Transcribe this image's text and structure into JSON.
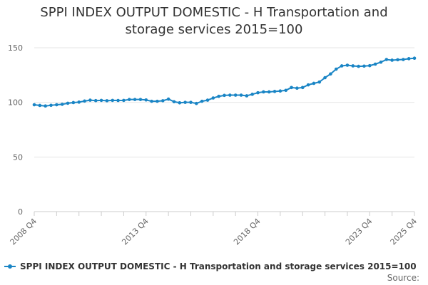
{
  "chart_data": {
    "type": "line",
    "title_lines": [
      "SPPI INDEX OUTPUT DOMESTIC - H Transportation and",
      "storage services 2015=100"
    ],
    "xlabel": "",
    "ylabel": "",
    "ylim": [
      0,
      150
    ],
    "y_ticks": [
      0,
      50,
      100,
      150
    ],
    "x_tick_labels": [
      "2008 Q4",
      "2013 Q4",
      "2018 Q4",
      "2023 Q4",
      "2025 Q4"
    ],
    "x_tick_positions": [
      0,
      20,
      40,
      60,
      68
    ],
    "grid": true,
    "legend_position": "bottom",
    "series": [
      {
        "name": "SPPI INDEX OUTPUT DOMESTIC - H Transportation and storage services 2015=100",
        "color": "#1a85c5",
        "x": [
          "2008 Q4",
          "2009 Q1",
          "2009 Q2",
          "2009 Q3",
          "2009 Q4",
          "2010 Q1",
          "2010 Q2",
          "2010 Q3",
          "2010 Q4",
          "2011 Q1",
          "2011 Q2",
          "2011 Q3",
          "2011 Q4",
          "2012 Q1",
          "2012 Q2",
          "2012 Q3",
          "2012 Q4",
          "2013 Q1",
          "2013 Q2",
          "2013 Q3",
          "2013 Q4",
          "2014 Q1",
          "2014 Q2",
          "2014 Q3",
          "2014 Q4",
          "2015 Q1",
          "2015 Q2",
          "2015 Q3",
          "2015 Q4",
          "2016 Q1",
          "2016 Q2",
          "2016 Q3",
          "2016 Q4",
          "2017 Q1",
          "2017 Q2",
          "2017 Q3",
          "2017 Q4",
          "2018 Q1",
          "2018 Q2",
          "2018 Q3",
          "2018 Q4",
          "2019 Q1",
          "2019 Q2",
          "2019 Q3",
          "2019 Q4",
          "2020 Q1",
          "2020 Q2",
          "2020 Q3",
          "2020 Q4",
          "2021 Q1",
          "2021 Q2",
          "2021 Q3",
          "2021 Q4",
          "2022 Q1",
          "2022 Q2",
          "2022 Q3",
          "2022 Q4",
          "2023 Q1",
          "2023 Q2",
          "2023 Q3",
          "2023 Q4",
          "2024 Q1",
          "2024 Q2",
          "2024 Q3",
          "2024 Q4",
          "2025 Q1",
          "2025 Q2",
          "2025 Q3",
          "2025 Q4"
        ],
        "values": [
          97.8,
          97.2,
          96.7,
          97.3,
          97.8,
          98.2,
          99.2,
          99.8,
          100.2,
          101.2,
          102.0,
          101.6,
          101.8,
          101.5,
          101.8,
          101.7,
          101.8,
          102.6,
          102.6,
          102.6,
          102.2,
          101.0,
          101.0,
          101.5,
          103.0,
          100.6,
          99.6,
          100.0,
          100.0,
          99.0,
          101.0,
          102.0,
          104.0,
          105.5,
          106.4,
          106.6,
          106.6,
          106.6,
          106.0,
          107.4,
          108.8,
          109.6,
          109.6,
          110.0,
          110.4,
          111.0,
          113.6,
          113.0,
          113.6,
          116.0,
          117.4,
          118.6,
          122.6,
          126.0,
          130.4,
          133.4,
          134.0,
          133.4,
          133.0,
          133.2,
          133.6,
          135.0,
          136.8,
          139.2,
          138.6,
          139.0,
          139.2,
          140.0,
          140.4
        ]
      }
    ]
  },
  "legend": {
    "label": "SPPI INDEX OUTPUT DOMESTIC - H Transportation and storage services 2015=100"
  },
  "source_label": "Source:"
}
